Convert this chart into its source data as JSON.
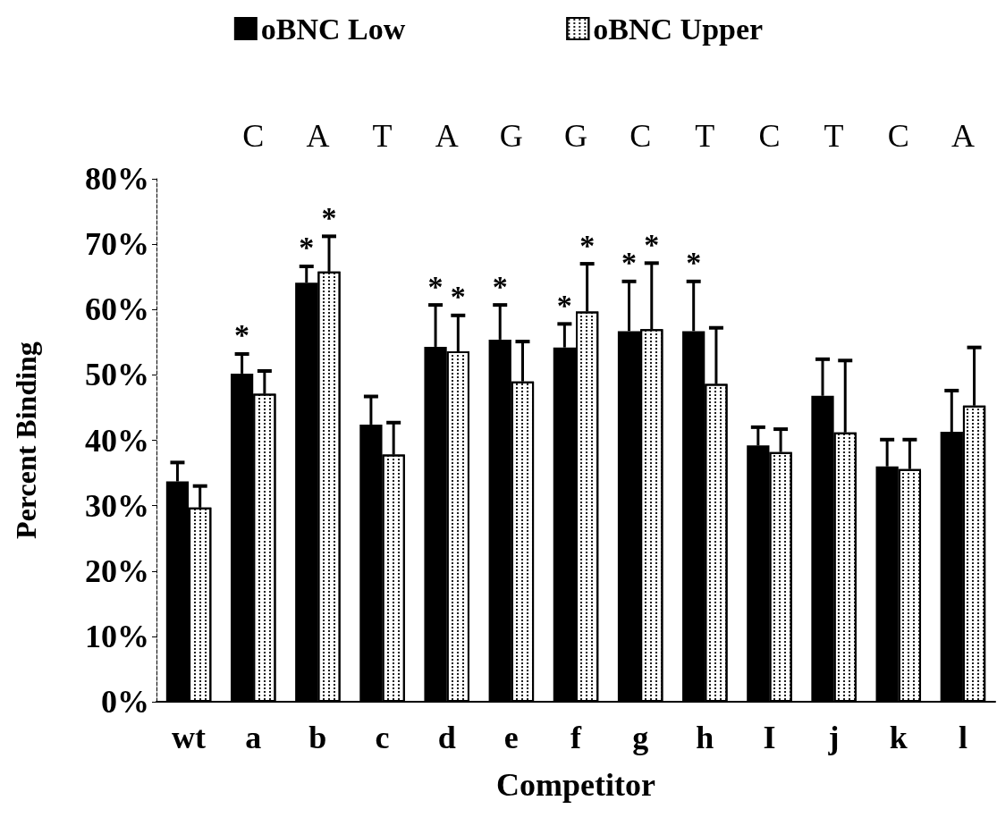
{
  "chart_data": {
    "type": "bar",
    "xlabel": "Competitor",
    "ylabel": "Percent Binding",
    "categories": [
      "wt",
      "a",
      "b",
      "c",
      "d",
      "e",
      "f",
      "g",
      "h",
      "I",
      "j",
      "k",
      "l"
    ],
    "series": [
      {
        "name": "oBNC Low",
        "color": "#000000",
        "values": [
          33.7,
          50.2,
          64.1,
          42.4,
          54.3,
          55.4,
          54.2,
          56.7,
          56.7,
          39.2,
          46.8,
          36.0,
          41.3
        ],
        "errors": [
          [
            33.7,
            36.6
          ],
          [
            50.2,
            53.2
          ],
          [
            64.1,
            66.6
          ],
          [
            42.4,
            46.7
          ],
          [
            54.3,
            60.7
          ],
          [
            55.4,
            60.7
          ],
          [
            54.2,
            57.8
          ],
          [
            56.7,
            64.3
          ],
          [
            56.7,
            64.3
          ],
          [
            39.2,
            42.0
          ],
          [
            46.8,
            52.4
          ],
          [
            36.0,
            40.1
          ],
          [
            41.3,
            47.6
          ]
        ],
        "value_labels": [
          null,
          "*",
          "*",
          null,
          "*",
          "*",
          "*",
          "*",
          "*",
          null,
          null,
          null,
          null
        ]
      },
      {
        "name": "oBNC Upper",
        "color": "#ffffff",
        "values": [
          29.7,
          47.1,
          65.8,
          37.8,
          53.6,
          49.0,
          59.7,
          57.0,
          48.6,
          38.2,
          41.2,
          35.6,
          45.3
        ],
        "errors": [
          [
            29.7,
            33.0
          ],
          [
            47.1,
            50.6
          ],
          [
            65.8,
            71.2
          ],
          [
            37.8,
            42.7
          ],
          [
            53.6,
            59.1
          ],
          [
            49.0,
            55.1
          ],
          [
            59.7,
            67.0
          ],
          [
            57.0,
            67.1
          ],
          [
            48.6,
            57.2
          ],
          [
            38.2,
            41.7
          ],
          [
            41.2,
            52.2
          ],
          [
            35.6,
            40.1
          ],
          [
            45.3,
            54.2
          ]
        ],
        "value_labels": [
          null,
          null,
          "*",
          null,
          "*",
          null,
          "*",
          "*",
          null,
          null,
          null,
          null,
          null
        ]
      }
    ],
    "ylim": [
      0,
      80
    ],
    "yticks": [
      {
        "value": 0,
        "label": "0%"
      },
      {
        "value": 10,
        "label": "10%"
      },
      {
        "value": 20,
        "label": "20%"
      },
      {
        "value": 30,
        "label": "30%"
      },
      {
        "value": 40,
        "label": "40%"
      },
      {
        "value": 50,
        "label": "50%"
      },
      {
        "value": 60,
        "label": "60%"
      },
      {
        "value": 70,
        "label": "70%"
      },
      {
        "value": 80,
        "label": "80%"
      }
    ],
    "annotations": [
      "C",
      "A",
      "T",
      "A",
      "G",
      "G",
      "C",
      "T",
      "C",
      "T",
      "C",
      "A"
    ],
    "legend": "top",
    "grid": false
  }
}
